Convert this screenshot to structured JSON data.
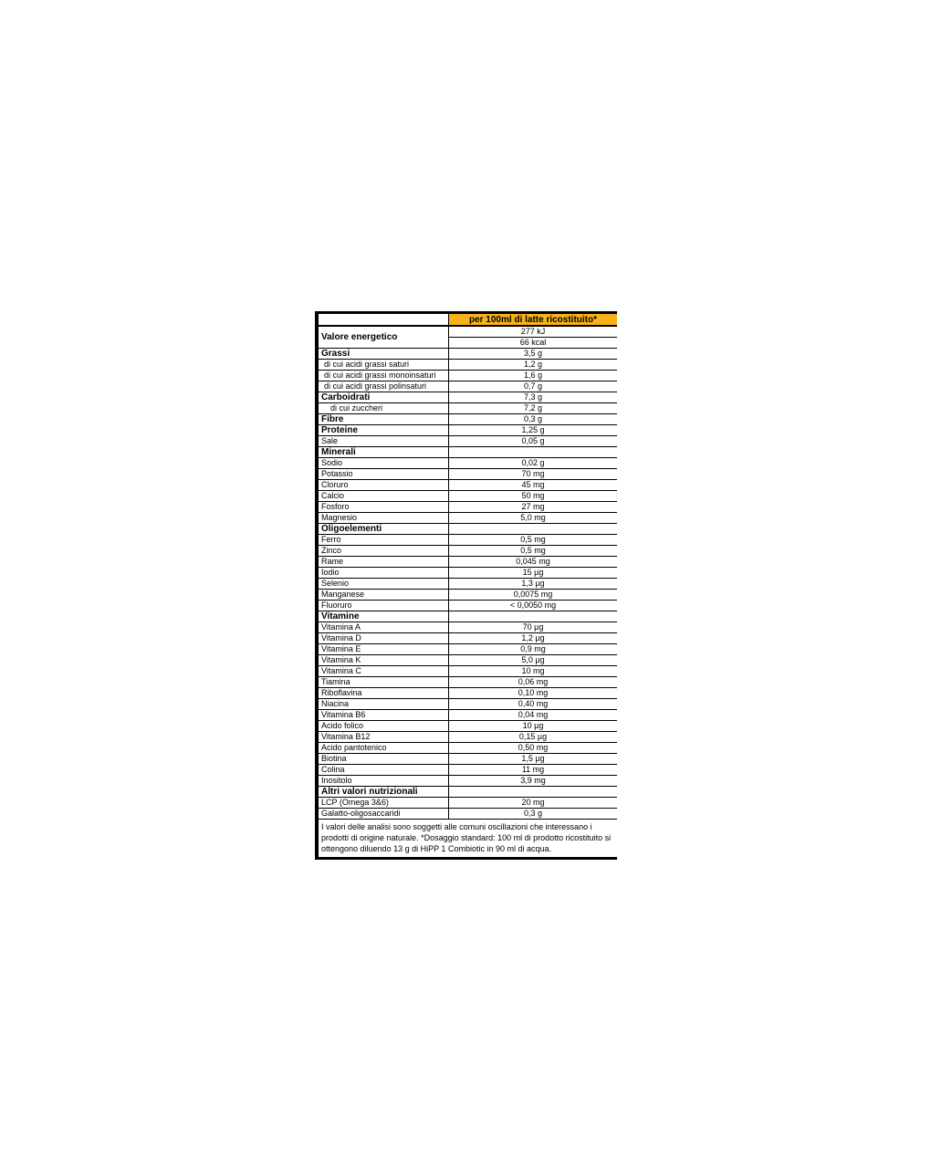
{
  "table": {
    "header": "per 100ml di latte ricostituito*",
    "energy": {
      "label": "Valore energetico",
      "kj": "277 kJ",
      "kcal": "66 kcal"
    },
    "rows": [
      {
        "label": "Grassi",
        "value": "3,5 g",
        "style": "bold"
      },
      {
        "label": "di  cui acidi grassi saturi",
        "value": "1,2 g",
        "style": "ind1"
      },
      {
        "label": "di cui acidi grassi monoinsaturi",
        "value": "1,6 g",
        "style": "ind1"
      },
      {
        "label": "di cui acidi grassi polinsaturi",
        "value": "0,7 g",
        "style": "ind1"
      },
      {
        "label": "Carboidrati",
        "value": "7,3 g",
        "style": "bold"
      },
      {
        "label": "di cui zuccheri",
        "value": "7,2 g",
        "style": "ind2"
      },
      {
        "label": "Fibre",
        "value": "0,3 g",
        "style": "bold"
      },
      {
        "label": "Proteine",
        "value": "1,25 g",
        "style": "bold"
      },
      {
        "label": "Sale",
        "value": "0,05 g",
        "style": ""
      },
      {
        "label": "Minerali",
        "value": "",
        "style": "bold"
      },
      {
        "label": "Sodio",
        "value": "0,02 g",
        "style": ""
      },
      {
        "label": "Potassio",
        "value": "70 mg",
        "style": ""
      },
      {
        "label": "Cloruro",
        "value": "45 mg",
        "style": ""
      },
      {
        "label": "Calcio",
        "value": "50 mg",
        "style": ""
      },
      {
        "label": "Fosforo",
        "value": "27 mg",
        "style": ""
      },
      {
        "label": "Magnesio",
        "value": "5,0 mg",
        "style": ""
      },
      {
        "label": "Oligoelementi",
        "value": "",
        "style": "bold"
      },
      {
        "label": "Ferro",
        "value": "0,5 mg",
        "style": ""
      },
      {
        "label": "Zinco",
        "value": "0,5 mg",
        "style": ""
      },
      {
        "label": "Rame",
        "value": "0,045 mg",
        "style": ""
      },
      {
        "label": "Iodio",
        "value": "15 µg",
        "style": ""
      },
      {
        "label": "Selenio",
        "value": "1,3 µg",
        "style": ""
      },
      {
        "label": "Manganese",
        "value": "0,0075 mg",
        "style": ""
      },
      {
        "label": "Fluoruro",
        "value": "< 0,0050 mg",
        "style": ""
      },
      {
        "label": "Vitamine",
        "value": "",
        "style": "bold"
      },
      {
        "label": "Vitamina A",
        "value": "70 µg",
        "style": ""
      },
      {
        "label": "Vitamina D",
        "value": "1,2 µg",
        "style": ""
      },
      {
        "label": "Vitamina E",
        "value": "0,9 mg",
        "style": ""
      },
      {
        "label": "Vitamina K",
        "value": "5,0 µg",
        "style": ""
      },
      {
        "label": "Vitamina C",
        "value": "10 mg",
        "style": ""
      },
      {
        "label": "Tiamina",
        "value": "0,06 mg",
        "style": ""
      },
      {
        "label": "Riboflavina",
        "value": "0,10 mg",
        "style": ""
      },
      {
        "label": "Niacina",
        "value": "0,40 mg",
        "style": ""
      },
      {
        "label": "Vitamina B6",
        "value": "0,04 mg",
        "style": ""
      },
      {
        "label": "Acido folico",
        "value": "10 µg",
        "style": ""
      },
      {
        "label": "Vitamina B12",
        "value": "0,15 µg",
        "style": ""
      },
      {
        "label": "Acido pantotenico",
        "value": "0,50 mg",
        "style": ""
      },
      {
        "label": "Biotina",
        "value": "1,5 µg",
        "style": ""
      },
      {
        "label": "Colina",
        "value": "11 mg",
        "style": ""
      },
      {
        "label": "Inositolo",
        "value": "3,9 mg",
        "style": ""
      },
      {
        "label": "Altri valori nutrizionali",
        "value": "",
        "style": "bold"
      },
      {
        "label": "LCP (Omega 3&6)",
        "value": "20 mg",
        "style": ""
      },
      {
        "label": "Galatto-oligosaccaridi",
        "value": "0,3 g",
        "style": ""
      }
    ],
    "footnote": "I valori delle analisi sono soggetti alle comuni oscillazioni che interessano i prodotti di origine naturale. *Dosaggio standard: 100 ml di prodotto ricostituito si ottengono diluendo 13 g di HiPP 1 Combiotic in 90 ml di acqua."
  },
  "colors": {
    "header_fill": "#f7b21a",
    "border": "#000000"
  }
}
